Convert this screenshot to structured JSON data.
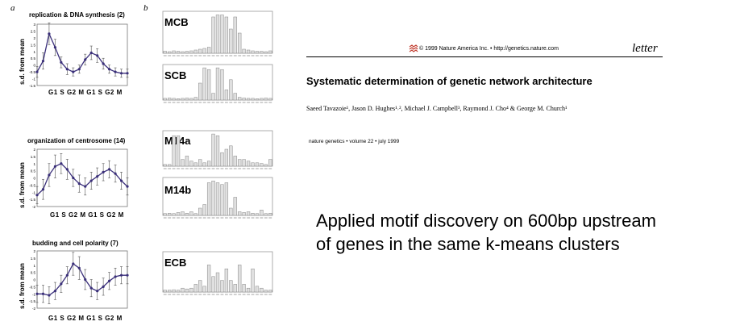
{
  "figure": {
    "panel_a_label": "a",
    "panel_b_label": "b",
    "ylabel": "s.d. from mean",
    "xticks": "G1  S  G2  M  G1  S  G2  M",
    "yticks": [
      "3",
      "2.5",
      "2",
      "1.5",
      "1",
      "0.5",
      "0",
      "-0.5",
      "-1",
      "-1.5"
    ],
    "yticks2": [
      "2",
      "1.5",
      "1",
      "0.5",
      "0",
      "-0.5",
      "-1",
      "-1.5",
      "-2"
    ]
  },
  "chart_data": [
    {
      "type": "line",
      "title": "replication & DNA synthesis (2)",
      "ylabel": "s.d. from mean",
      "ylim": [
        -1.5,
        3
      ],
      "x": [
        1,
        2,
        3,
        4,
        5,
        6,
        7,
        8,
        9,
        10,
        11,
        12,
        13,
        14,
        15,
        16
      ],
      "values": [
        -0.5,
        0.3,
        2.3,
        1.3,
        0.2,
        -0.3,
        -0.5,
        -0.3,
        0.4,
        0.9,
        0.7,
        0.1,
        -0.3,
        -0.5,
        -0.6,
        -0.6
      ],
      "errors": [
        0.4,
        0.6,
        0.8,
        0.6,
        0.4,
        0.4,
        0.3,
        0.3,
        0.4,
        0.5,
        0.5,
        0.4,
        0.3,
        0.3,
        0.3,
        0.3
      ]
    },
    {
      "type": "line",
      "title": "organization of centrosome (14)",
      "ylabel": "s.d. from mean",
      "ylim": [
        -2,
        2
      ],
      "x": [
        1,
        2,
        3,
        4,
        5,
        6,
        7,
        8,
        9,
        10,
        11,
        12,
        13,
        14,
        15,
        16
      ],
      "values": [
        -1.2,
        -0.8,
        0.2,
        0.8,
        1.0,
        0.6,
        0.0,
        -0.4,
        -0.6,
        -0.2,
        0.1,
        0.4,
        0.6,
        0.3,
        -0.2,
        -0.6
      ],
      "errors": [
        0.6,
        0.7,
        0.8,
        0.8,
        0.7,
        0.7,
        0.6,
        0.6,
        0.6,
        0.6,
        0.6,
        0.6,
        0.6,
        0.6,
        0.6,
        0.6
      ]
    },
    {
      "type": "line",
      "title": "budding and cell polarity (7)",
      "ylabel": "s.d. from mean",
      "ylim": [
        -2,
        2
      ],
      "x": [
        1,
        2,
        3,
        4,
        5,
        6,
        7,
        8,
        9,
        10,
        11,
        12,
        13,
        14,
        15,
        16
      ],
      "values": [
        -1.0,
        -1.0,
        -1.1,
        -0.8,
        -0.3,
        0.3,
        1.1,
        0.8,
        0.0,
        -0.6,
        -0.8,
        -0.5,
        -0.1,
        0.2,
        0.3,
        0.3
      ],
      "errors": [
        0.6,
        0.6,
        0.6,
        0.6,
        0.6,
        0.6,
        0.8,
        0.8,
        0.7,
        0.6,
        0.6,
        0.6,
        0.6,
        0.6,
        0.6,
        0.6
      ]
    }
  ],
  "motifs": [
    {
      "label": "MCB",
      "heights": [
        0.05,
        0.04,
        0.06,
        0.05,
        0.04,
        0.05,
        0.06,
        0.08,
        0.1,
        0.12,
        0.15,
        0.9,
        0.95,
        0.95,
        0.9,
        0.6,
        0.9,
        0.5,
        0.1,
        0.08,
        0.06,
        0.05,
        0.05,
        0.04,
        0.06
      ]
    },
    {
      "label": "SCB",
      "heights": [
        0.05,
        0.06,
        0.05,
        0.04,
        0.05,
        0.06,
        0.05,
        0.08,
        0.5,
        0.95,
        0.9,
        0.2,
        0.95,
        0.9,
        0.3,
        0.6,
        0.2,
        0.08,
        0.06,
        0.05,
        0.05,
        0.04,
        0.05,
        0.06,
        0.05
      ]
    },
    {
      "label": "M14a",
      "heights": [
        0.05,
        0.05,
        0.9,
        0.9,
        0.2,
        0.3,
        0.15,
        0.1,
        0.2,
        0.1,
        0.15,
        0.95,
        0.9,
        0.4,
        0.5,
        0.6,
        0.3,
        0.2,
        0.2,
        0.15,
        0.1,
        0.1,
        0.08,
        0.05,
        0.2
      ]
    },
    {
      "label": "M14b",
      "heights": [
        0.05,
        0.06,
        0.05,
        0.08,
        0.1,
        0.06,
        0.1,
        0.05,
        0.2,
        0.3,
        0.9,
        0.95,
        0.9,
        0.85,
        0.9,
        0.2,
        0.5,
        0.1,
        0.08,
        0.1,
        0.06,
        0.05,
        0.15,
        0.05,
        0.06
      ]
    },
    {
      "label": "ECB",
      "heights": [
        0.05,
        0.05,
        0.06,
        0.05,
        0.1,
        0.08,
        0.1,
        0.2,
        0.3,
        0.15,
        0.7,
        0.4,
        0.5,
        0.3,
        0.6,
        0.3,
        0.2,
        0.7,
        0.2,
        0.1,
        0.6,
        0.15,
        0.1,
        0.05,
        0.05
      ]
    }
  ],
  "paper": {
    "copyright": "© 1999 Nature America Inc. • http://genetics.nature.com",
    "letter": "letter",
    "title": "Systematic determination of genetic network architecture",
    "authors": "Saeed Tavazoie¹, Jason D. Hughes¹˒², Michael J. Campbell³, Raymond J. Cho⁴ & George M. Church¹",
    "journal": "nature genetics • volume 22 • july 1999"
  },
  "caption": {
    "line1": "Applied motif discovery on 600bp upstream",
    "line2": "of genes in the same k-means clusters"
  },
  "colors": {
    "line": "#3a2f7a",
    "accent": "#c0392b"
  }
}
